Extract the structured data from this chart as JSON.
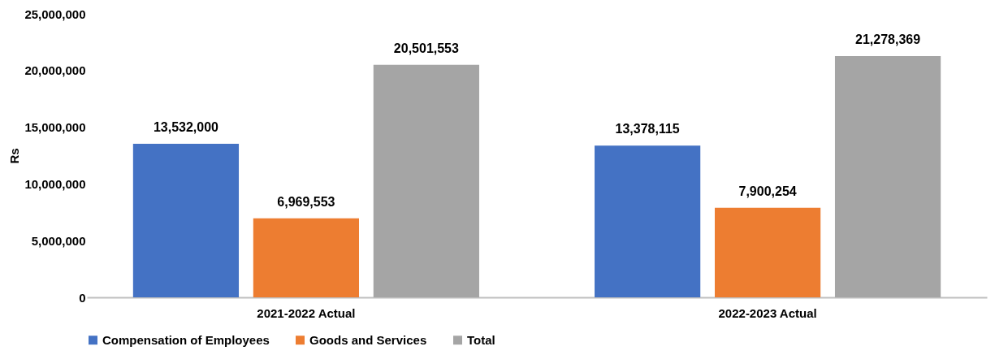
{
  "chart_data": {
    "type": "bar",
    "ylabel": "Rs",
    "categories": [
      "2021-2022 Actual",
      "2022-2023 Actual"
    ],
    "series": [
      {
        "name": "Compensation of Employees",
        "color": "#4472c4",
        "values": [
          13532000,
          13378115
        ],
        "value_labels": [
          "13,532,000",
          "13,378,115"
        ]
      },
      {
        "name": "Goods and Services",
        "color": "#ed7d31",
        "values": [
          6969553,
          7900254
        ],
        "value_labels": [
          "6,969,553",
          "7,900,254"
        ]
      },
      {
        "name": "Total",
        "color": "#a5a5a5",
        "values": [
          20501553,
          21278369
        ],
        "value_labels": [
          "20,501,553",
          "21,278,369"
        ]
      }
    ],
    "ylim": [
      0,
      25000000
    ],
    "yticks": [
      0,
      {
        "value": 5000000,
        "label": "5,000,000"
      },
      {
        "value": 10000000,
        "label": "10,000,000"
      },
      {
        "value": 15000000,
        "label": "15,000,000"
      },
      {
        "value": 20000000,
        "label": "20,000,000"
      },
      {
        "value": 25000000,
        "label": "25,000,000"
      }
    ],
    "grid": false,
    "legend": "bottom"
  }
}
